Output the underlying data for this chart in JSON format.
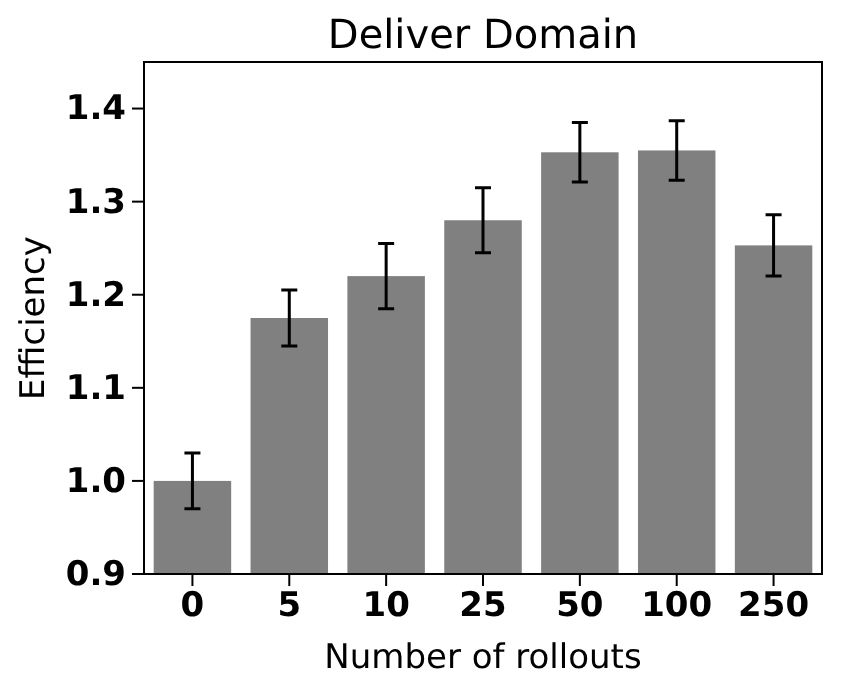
{
  "chart_data": {
    "type": "bar",
    "title": "Deliver Domain",
    "xlabel": "Number of rollouts",
    "ylabel": "Efficiency",
    "categories": [
      "0",
      "5",
      "10",
      "25",
      "50",
      "100",
      "250"
    ],
    "values": [
      1.0,
      1.175,
      1.22,
      1.28,
      1.353,
      1.355,
      1.253
    ],
    "errors": [
      0.03,
      0.03,
      0.035,
      0.035,
      0.032,
      0.032,
      0.033
    ],
    "color": "#808080",
    "ylim": [
      0.9,
      1.45
    ],
    "yticks": [
      0.9,
      {
        "value": 1,
        "label": "1.0"
      },
      1.1,
      1.2,
      1.3,
      1.4
    ]
  }
}
